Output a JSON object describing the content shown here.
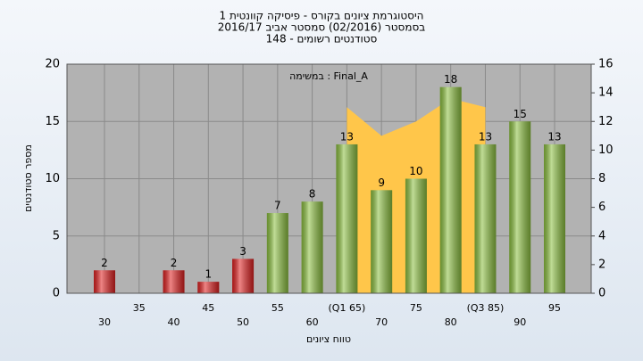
{
  "chart_data": {
    "type": "bar",
    "title": [
      "היסטוגרמת ציונים בקורס - פיסיקה קוונטית 1",
      "בסמסטר  (02/2016)  סמסטר אביב 2016/17",
      "סטודנטים רשומים - 148"
    ],
    "annotation": "במשימה : Final_A",
    "y_label": "מספר סטודנטים",
    "x_label": "טווח ציונים",
    "categories": [
      "30",
      "35",
      "40",
      "45",
      "50",
      "55",
      "60",
      "(Q1 65)",
      "70",
      "75",
      "80",
      "(Q3 85)",
      "90",
      "95"
    ],
    "values": [
      2,
      0,
      2,
      1,
      3,
      7,
      8,
      13,
      9,
      10,
      18,
      13,
      15,
      13
    ],
    "colors": [
      "#e02020",
      "#e02020",
      "#e02020",
      "#e02020",
      "#e02020",
      "#8cc040",
      "#8cc040",
      "#8cc040",
      "#8cc040",
      "#8cc040",
      "#8cc040",
      "#8cc040",
      "#8cc040",
      "#8cc040"
    ],
    "area": {
      "axis": "y2",
      "color": "#ffc64a",
      "values": [
        null,
        null,
        null,
        null,
        null,
        null,
        null,
        13,
        11,
        12,
        13.6,
        13,
        null,
        null
      ]
    },
    "ylim": [
      0,
      20
    ],
    "yticks": [
      0,
      5,
      10,
      15,
      20
    ],
    "y2lim": [
      0,
      16
    ],
    "y2ticks": [
      0,
      2,
      4,
      6,
      8,
      10,
      12,
      14,
      16
    ],
    "grid": true
  }
}
